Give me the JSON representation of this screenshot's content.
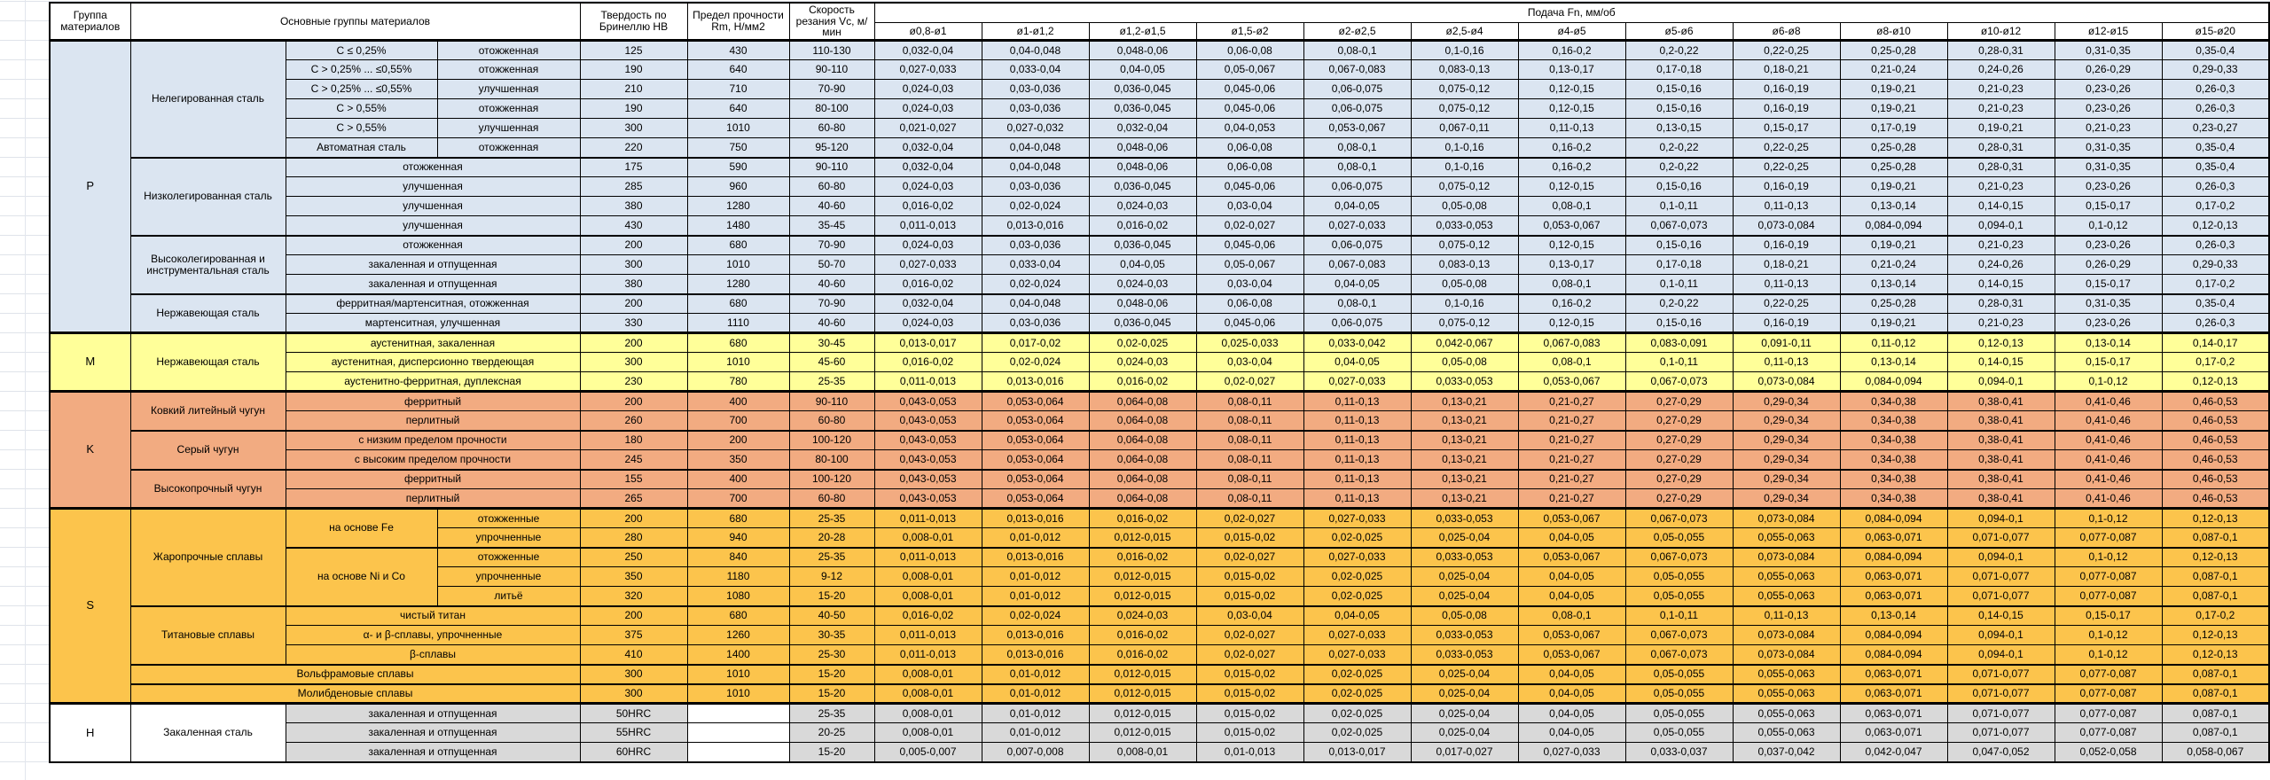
{
  "header": {
    "group": "Группа материалов",
    "main_groups": "Основные группы материалов",
    "hardness": "Твердость по Бринеллю HB",
    "strength": "Предел прочности Rm, Н/мм2",
    "speed": "Скорость резания Vc, м/мин",
    "feed": "Подача Fn, мм/об",
    "diameters": [
      "ø0,8-ø1",
      "ø1-ø1,2",
      "ø1,2-ø1,5",
      "ø1,5-ø2",
      "ø2-ø2,5",
      "ø2,5-ø4",
      "ø4-ø5",
      "ø5-ø6",
      "ø6-ø8",
      "ø8-ø10",
      "ø10-ø12",
      "ø12-ø15",
      "ø15-ø20"
    ]
  },
  "colors": {
    "P": "#dbe5f1",
    "M": "#ffff99",
    "K": "#f2ab81",
    "S": "#fcc44c",
    "H": "#d9d9d9",
    "border": "#000000",
    "gridline": "#dfe3ea"
  },
  "feed_patterns": {
    "A": [
      "0,032-0,04",
      "0,04-0,048",
      "0,048-0,06",
      "0,06-0,08",
      "0,08-0,1",
      "0,1-0,16",
      "0,16-0,2",
      "0,2-0,22",
      "0,22-0,25",
      "0,25-0,28",
      "0,28-0,31",
      "0,31-0,35",
      "0,35-0,4"
    ],
    "B": [
      "0,027-0,033",
      "0,033-0,04",
      "0,04-0,05",
      "0,05-0,067",
      "0,067-0,083",
      "0,083-0,13",
      "0,13-0,17",
      "0,17-0,18",
      "0,18-0,21",
      "0,21-0,24",
      "0,24-0,26",
      "0,26-0,29",
      "0,29-0,33"
    ],
    "C": [
      "0,024-0,03",
      "0,03-0,036",
      "0,036-0,045",
      "0,045-0,06",
      "0,06-0,075",
      "0,075-0,12",
      "0,12-0,15",
      "0,15-0,16",
      "0,16-0,19",
      "0,19-0,21",
      "0,21-0,23",
      "0,23-0,26",
      "0,26-0,3"
    ],
    "D": [
      "0,021-0,027",
      "0,027-0,032",
      "0,032-0,04",
      "0,04-0,053",
      "0,053-0,067",
      "0,067-0,11",
      "0,11-0,13",
      "0,13-0,15",
      "0,15-0,17",
      "0,17-0,19",
      "0,19-0,21",
      "0,21-0,23",
      "0,23-0,27"
    ],
    "E": [
      "0,016-0,02",
      "0,02-0,024",
      "0,024-0,03",
      "0,03-0,04",
      "0,04-0,05",
      "0,05-0,08",
      "0,08-0,1",
      "0,1-0,11",
      "0,11-0,13",
      "0,13-0,14",
      "0,14-0,15",
      "0,15-0,17",
      "0,17-0,2"
    ],
    "F": [
      "0,011-0,013",
      "0,013-0,016",
      "0,016-0,02",
      "0,02-0,027",
      "0,027-0,033",
      "0,033-0,053",
      "0,053-0,067",
      "0,067-0,073",
      "0,073-0,084",
      "0,084-0,094",
      "0,094-0,1",
      "0,1-0,12",
      "0,12-0,13"
    ],
    "G": [
      "0,013-0,017",
      "0,017-0,02",
      "0,02-0,025",
      "0,025-0,033",
      "0,033-0,042",
      "0,042-0,067",
      "0,067-0,083",
      "0,083-0,091",
      "0,091-0,11",
      "0,11-0,12",
      "0,12-0,13",
      "0,13-0,14",
      "0,14-0,17"
    ],
    "K": [
      "0,043-0,053",
      "0,053-0,064",
      "0,064-0,08",
      "0,08-0,11",
      "0,11-0,13",
      "0,13-0,21",
      "0,21-0,27",
      "0,27-0,29",
      "0,29-0,34",
      "0,34-0,38",
      "0,38-0,41",
      "0,41-0,46",
      "0,46-0,53"
    ],
    "S": [
      "0,008-0,01",
      "0,01-0,012",
      "0,012-0,015",
      "0,015-0,02",
      "0,02-0,025",
      "0,025-0,04",
      "0,04-0,05",
      "0,05-0,055",
      "0,055-0,063",
      "0,063-0,071",
      "0,071-0,077",
      "0,077-0,087",
      "0,087-0,1"
    ],
    "H": [
      "0,005-0,007",
      "0,007-0,008",
      "0,008-0,01",
      "0,01-0,013",
      "0,013-0,017",
      "0,017-0,027",
      "0,027-0,033",
      "0,033-0,037",
      "0,037-0,042",
      "0,042-0,047",
      "0,047-0,052",
      "0,052-0,058",
      "0,058-0,067"
    ]
  },
  "table": {
    "rows": [
      {
        "sec": "P",
        "bt": "s",
        "lead": [
          {
            "t": "P",
            "r": 15,
            "g": 1
          },
          {
            "t": "Нелегированная сталь",
            "r": 6
          },
          {
            "t": "C ≤ 0,25%"
          },
          {
            "t": "отожженная"
          }
        ],
        "hb": "125",
        "rm": "430",
        "vc": "110-130",
        "fp": "A"
      },
      {
        "sec": "P",
        "lead": [
          {
            "t": "C > 0,25% ... ≤0,55%"
          },
          {
            "t": "отожженная"
          }
        ],
        "hb": "190",
        "rm": "640",
        "vc": "90-110",
        "fp": "B"
      },
      {
        "sec": "P",
        "lead": [
          {
            "t": "C > 0,25% ... ≤0,55%"
          },
          {
            "t": "улучшенная"
          }
        ],
        "hb": "210",
        "rm": "710",
        "vc": "70-90",
        "fp": "C"
      },
      {
        "sec": "P",
        "lead": [
          {
            "t": "C > 0,55%"
          },
          {
            "t": "отожженная"
          }
        ],
        "hb": "190",
        "rm": "640",
        "vc": "80-100",
        "fp": "C"
      },
      {
        "sec": "P",
        "lead": [
          {
            "t": "C > 0,55%"
          },
          {
            "t": "улучшенная"
          }
        ],
        "hb": "300",
        "rm": "1010",
        "vc": "60-80",
        "fp": "D"
      },
      {
        "sec": "P",
        "lead": [
          {
            "t": "Автоматная сталь"
          },
          {
            "t": "отожженная"
          }
        ],
        "hb": "220",
        "rm": "750",
        "vc": "95-120",
        "fp": "A"
      },
      {
        "sec": "P",
        "bt": "m",
        "lead": [
          {
            "t": "Низколегированная сталь",
            "r": 4
          },
          {
            "t": "отожженная",
            "c": 2
          }
        ],
        "hb": "175",
        "rm": "590",
        "vc": "90-110",
        "fp": "A"
      },
      {
        "sec": "P",
        "lead": [
          {
            "t": "улучшенная",
            "c": 2
          }
        ],
        "hb": "285",
        "rm": "960",
        "vc": "60-80",
        "fp": "C"
      },
      {
        "sec": "P",
        "lead": [
          {
            "t": "улучшенная",
            "c": 2
          }
        ],
        "hb": "380",
        "rm": "1280",
        "vc": "40-60",
        "fp": "E"
      },
      {
        "sec": "P",
        "lead": [
          {
            "t": "улучшенная",
            "c": 2
          }
        ],
        "hb": "430",
        "rm": "1480",
        "vc": "35-45",
        "fp": "F"
      },
      {
        "sec": "P",
        "bt": "m",
        "lead": [
          {
            "t": "Высоколегированная и инструментальная сталь",
            "r": 3
          },
          {
            "t": "отожженная",
            "c": 2
          }
        ],
        "hb": "200",
        "rm": "680",
        "vc": "70-90",
        "fp": "C"
      },
      {
        "sec": "P",
        "lead": [
          {
            "t": "закаленная и отпущенная",
            "c": 2
          }
        ],
        "hb": "300",
        "rm": "1010",
        "vc": "50-70",
        "fp": "B"
      },
      {
        "sec": "P",
        "lead": [
          {
            "t": "закаленная и отпущенная",
            "c": 2
          }
        ],
        "hb": "380",
        "rm": "1280",
        "vc": "40-60",
        "fp": "E"
      },
      {
        "sec": "P",
        "bt": "m",
        "lead": [
          {
            "t": "Нержавеющая сталь",
            "r": 2
          },
          {
            "t": "ферритная/мартенситная, отожженная",
            "c": 2
          }
        ],
        "hb": "200",
        "rm": "680",
        "vc": "70-90",
        "fp": "A"
      },
      {
        "sec": "P",
        "lead": [
          {
            "t": "мартенситная, улучшенная",
            "c": 2
          }
        ],
        "hb": "330",
        "rm": "1110",
        "vc": "40-60",
        "fp": "C"
      },
      {
        "sec": "M",
        "bt": "s",
        "lead": [
          {
            "t": "M",
            "r": 3,
            "g": 1
          },
          {
            "t": "Нержавеющая сталь",
            "r": 3
          },
          {
            "t": "аустенитная, закаленная",
            "c": 2
          }
        ],
        "hb": "200",
        "rm": "680",
        "vc": "30-45",
        "fp": "G"
      },
      {
        "sec": "M",
        "lead": [
          {
            "t": "аустенитная, дисперсионно твердеющая",
            "c": 2
          }
        ],
        "hb": "300",
        "rm": "1010",
        "vc": "45-60",
        "fp": "E"
      },
      {
        "sec": "M",
        "lead": [
          {
            "t": "аустенитно-ферритная, дуплексная",
            "c": 2
          }
        ],
        "hb": "230",
        "rm": "780",
        "vc": "25-35",
        "fp": "F"
      },
      {
        "sec": "K",
        "bt": "s",
        "lead": [
          {
            "t": "K",
            "r": 6,
            "g": 1
          },
          {
            "t": "Ковкий литейный чугун",
            "r": 2
          },
          {
            "t": "ферритный",
            "c": 2
          }
        ],
        "hb": "200",
        "rm": "400",
        "vc": "90-110",
        "fp": "K"
      },
      {
        "sec": "K",
        "lead": [
          {
            "t": "перлитный",
            "c": 2
          }
        ],
        "hb": "260",
        "rm": "700",
        "vc": "60-80",
        "fp": "K"
      },
      {
        "sec": "K",
        "bt": "m",
        "lead": [
          {
            "t": "Серый чугун",
            "r": 2
          },
          {
            "t": "с низким пределом прочности",
            "c": 2
          }
        ],
        "hb": "180",
        "rm": "200",
        "vc": "100-120",
        "fp": "K"
      },
      {
        "sec": "K",
        "lead": [
          {
            "t": "с высоким пределом прочности",
            "c": 2
          }
        ],
        "hb": "245",
        "rm": "350",
        "vc": "80-100",
        "fp": "K"
      },
      {
        "sec": "K",
        "bt": "m",
        "lead": [
          {
            "t": "Высокопрочный чугун",
            "r": 2
          },
          {
            "t": "ферритный",
            "c": 2
          }
        ],
        "hb": "155",
        "rm": "400",
        "vc": "100-120",
        "fp": "K"
      },
      {
        "sec": "K",
        "lead": [
          {
            "t": "перлитный",
            "c": 2
          }
        ],
        "hb": "265",
        "rm": "700",
        "vc": "60-80",
        "fp": "K"
      },
      {
        "sec": "S",
        "bt": "s",
        "lead": [
          {
            "t": "S",
            "r": 10,
            "g": 1
          },
          {
            "t": "Жаропрочные сплавы",
            "r": 5
          },
          {
            "t": "на основе Fe",
            "r": 2
          },
          {
            "t": "отожженные"
          }
        ],
        "hb": "200",
        "rm": "680",
        "vc": "25-35",
        "fp": "F"
      },
      {
        "sec": "S",
        "lead": [
          {
            "t": "упрочненные"
          }
        ],
        "hb": "280",
        "rm": "940",
        "vc": "20-28",
        "fp": "S"
      },
      {
        "sec": "S",
        "bt": "m",
        "lead": [
          {
            "t": "на основе Ni и Co",
            "r": 3
          },
          {
            "t": "отожженные"
          }
        ],
        "hb": "250",
        "rm": "840",
        "vc": "25-35",
        "fp": "F"
      },
      {
        "sec": "S",
        "lead": [
          {
            "t": "упрочненные"
          }
        ],
        "hb": "350",
        "rm": "1180",
        "vc": "9-12",
        "fp": "S"
      },
      {
        "sec": "S",
        "lead": [
          {
            "t": "литьё"
          }
        ],
        "hb": "320",
        "rm": "1080",
        "vc": "15-20",
        "fp": "S"
      },
      {
        "sec": "S",
        "bt": "m",
        "lead": [
          {
            "t": "Титановые сплавы",
            "r": 3
          },
          {
            "t": "чистый титан",
            "c": 2
          }
        ],
        "hb": "200",
        "rm": "680",
        "vc": "40-50",
        "fp": "E"
      },
      {
        "sec": "S",
        "lead": [
          {
            "t": "α- и β-сплавы, упрочненные",
            "c": 2
          }
        ],
        "hb": "375",
        "rm": "1260",
        "vc": "30-35",
        "fp": "F"
      },
      {
        "sec": "S",
        "lead": [
          {
            "t": "β-сплавы",
            "c": 2
          }
        ],
        "hb": "410",
        "rm": "1400",
        "vc": "25-30",
        "fp": "F"
      },
      {
        "sec": "S",
        "bt": "m",
        "lead": [
          {
            "t": "Вольфрамовые сплавы",
            "c": 3
          }
        ],
        "hb": "300",
        "rm": "1010",
        "vc": "15-20",
        "fp": "S"
      },
      {
        "sec": "S",
        "bt": "m",
        "lead": [
          {
            "t": "Молибденовые сплавы",
            "c": 3
          }
        ],
        "hb": "300",
        "rm": "1010",
        "vc": "15-20",
        "fp": "S"
      },
      {
        "sec": "H",
        "bt": "s",
        "lead": [
          {
            "t": "H",
            "r": 3,
            "g": 1,
            "w": 1
          },
          {
            "t": "Закаленная сталь",
            "r": 3,
            "w": 1
          },
          {
            "t": "закаленная и отпущенная",
            "c": 2
          }
        ],
        "hb": "50HRC",
        "rm": "",
        "vc": "25-35",
        "fp": "S"
      },
      {
        "sec": "H",
        "lead": [
          {
            "t": "закаленная и отпущенная",
            "c": 2
          }
        ],
        "hb": "55HRC",
        "rm": "",
        "vc": "20-25",
        "fp": "S"
      },
      {
        "sec": "H",
        "lead": [
          {
            "t": "закаленная и отпущенная",
            "c": 2
          }
        ],
        "hb": "60HRC",
        "rm": "",
        "vc": "15-20",
        "fp": "H"
      }
    ]
  }
}
